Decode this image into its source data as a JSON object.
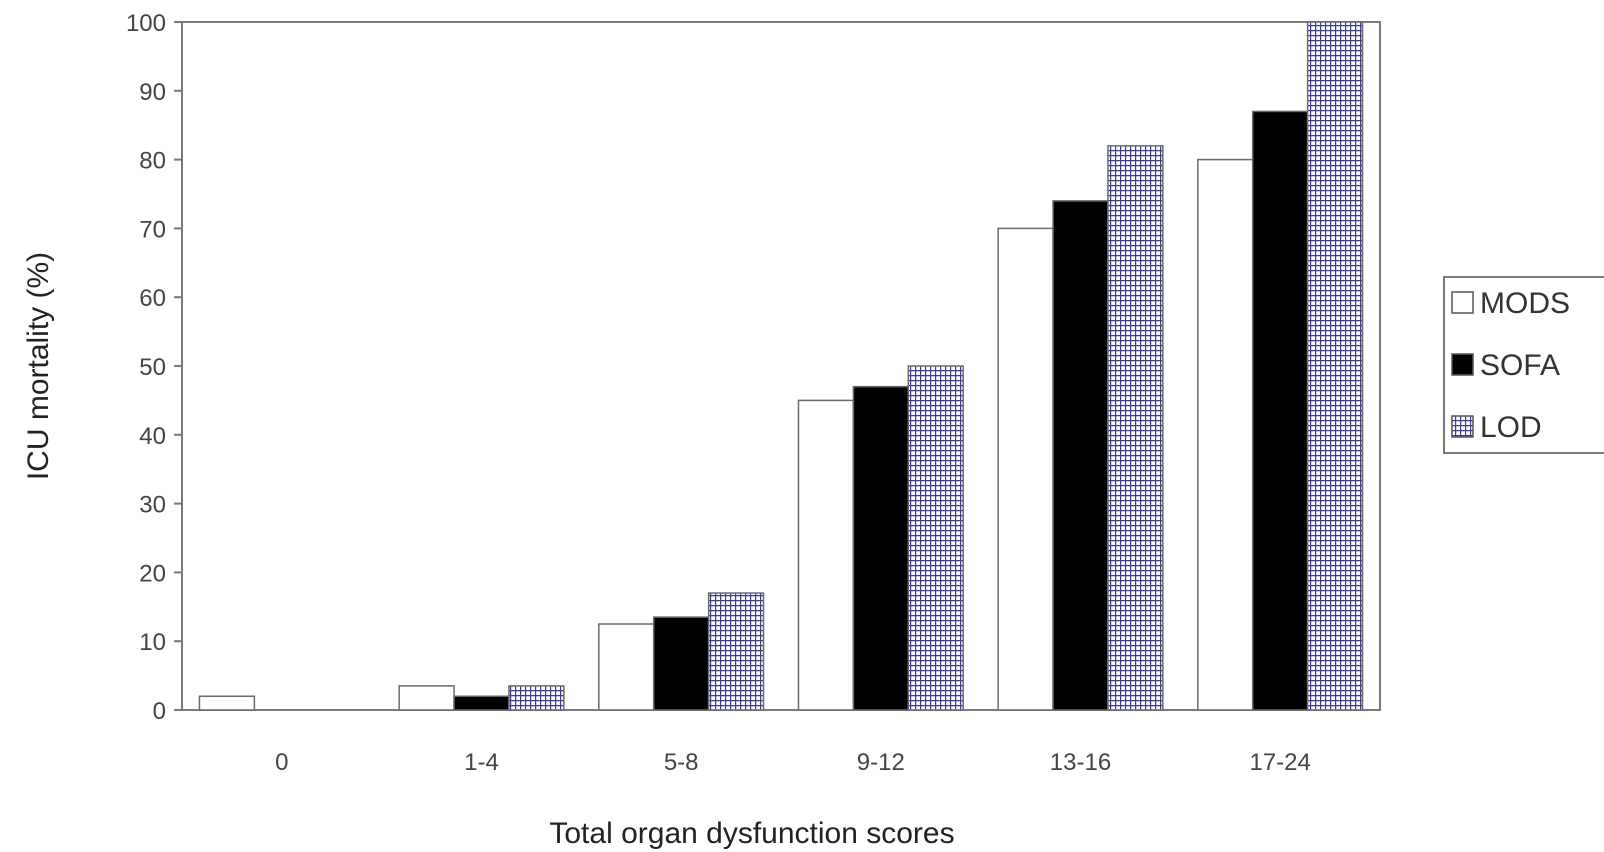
{
  "chart_data": {
    "type": "bar",
    "title": "",
    "xlabel": "Total organ dysfunction scores",
    "ylabel": "ICU mortality (%)",
    "ylim": [
      0,
      100
    ],
    "yticks": [
      0,
      10,
      20,
      30,
      40,
      50,
      60,
      70,
      80,
      90,
      100
    ],
    "categories": [
      "0",
      "1-4",
      "5-8",
      "9-12",
      "13-16",
      "17-24"
    ],
    "series": [
      {
        "name": "MODS",
        "values": [
          2,
          3.5,
          12.5,
          45,
          70,
          80
        ],
        "color": "#ffffff",
        "pattern": "none"
      },
      {
        "name": "SOFA",
        "values": [
          0,
          2,
          13.5,
          47,
          74,
          87
        ],
        "color": "#000000",
        "pattern": "none"
      },
      {
        "name": "LOD",
        "values": [
          0,
          3.5,
          17,
          50,
          82,
          100
        ],
        "color": "#3b3b8f",
        "pattern": "grid"
      }
    ],
    "grid": false,
    "legend": "right"
  }
}
